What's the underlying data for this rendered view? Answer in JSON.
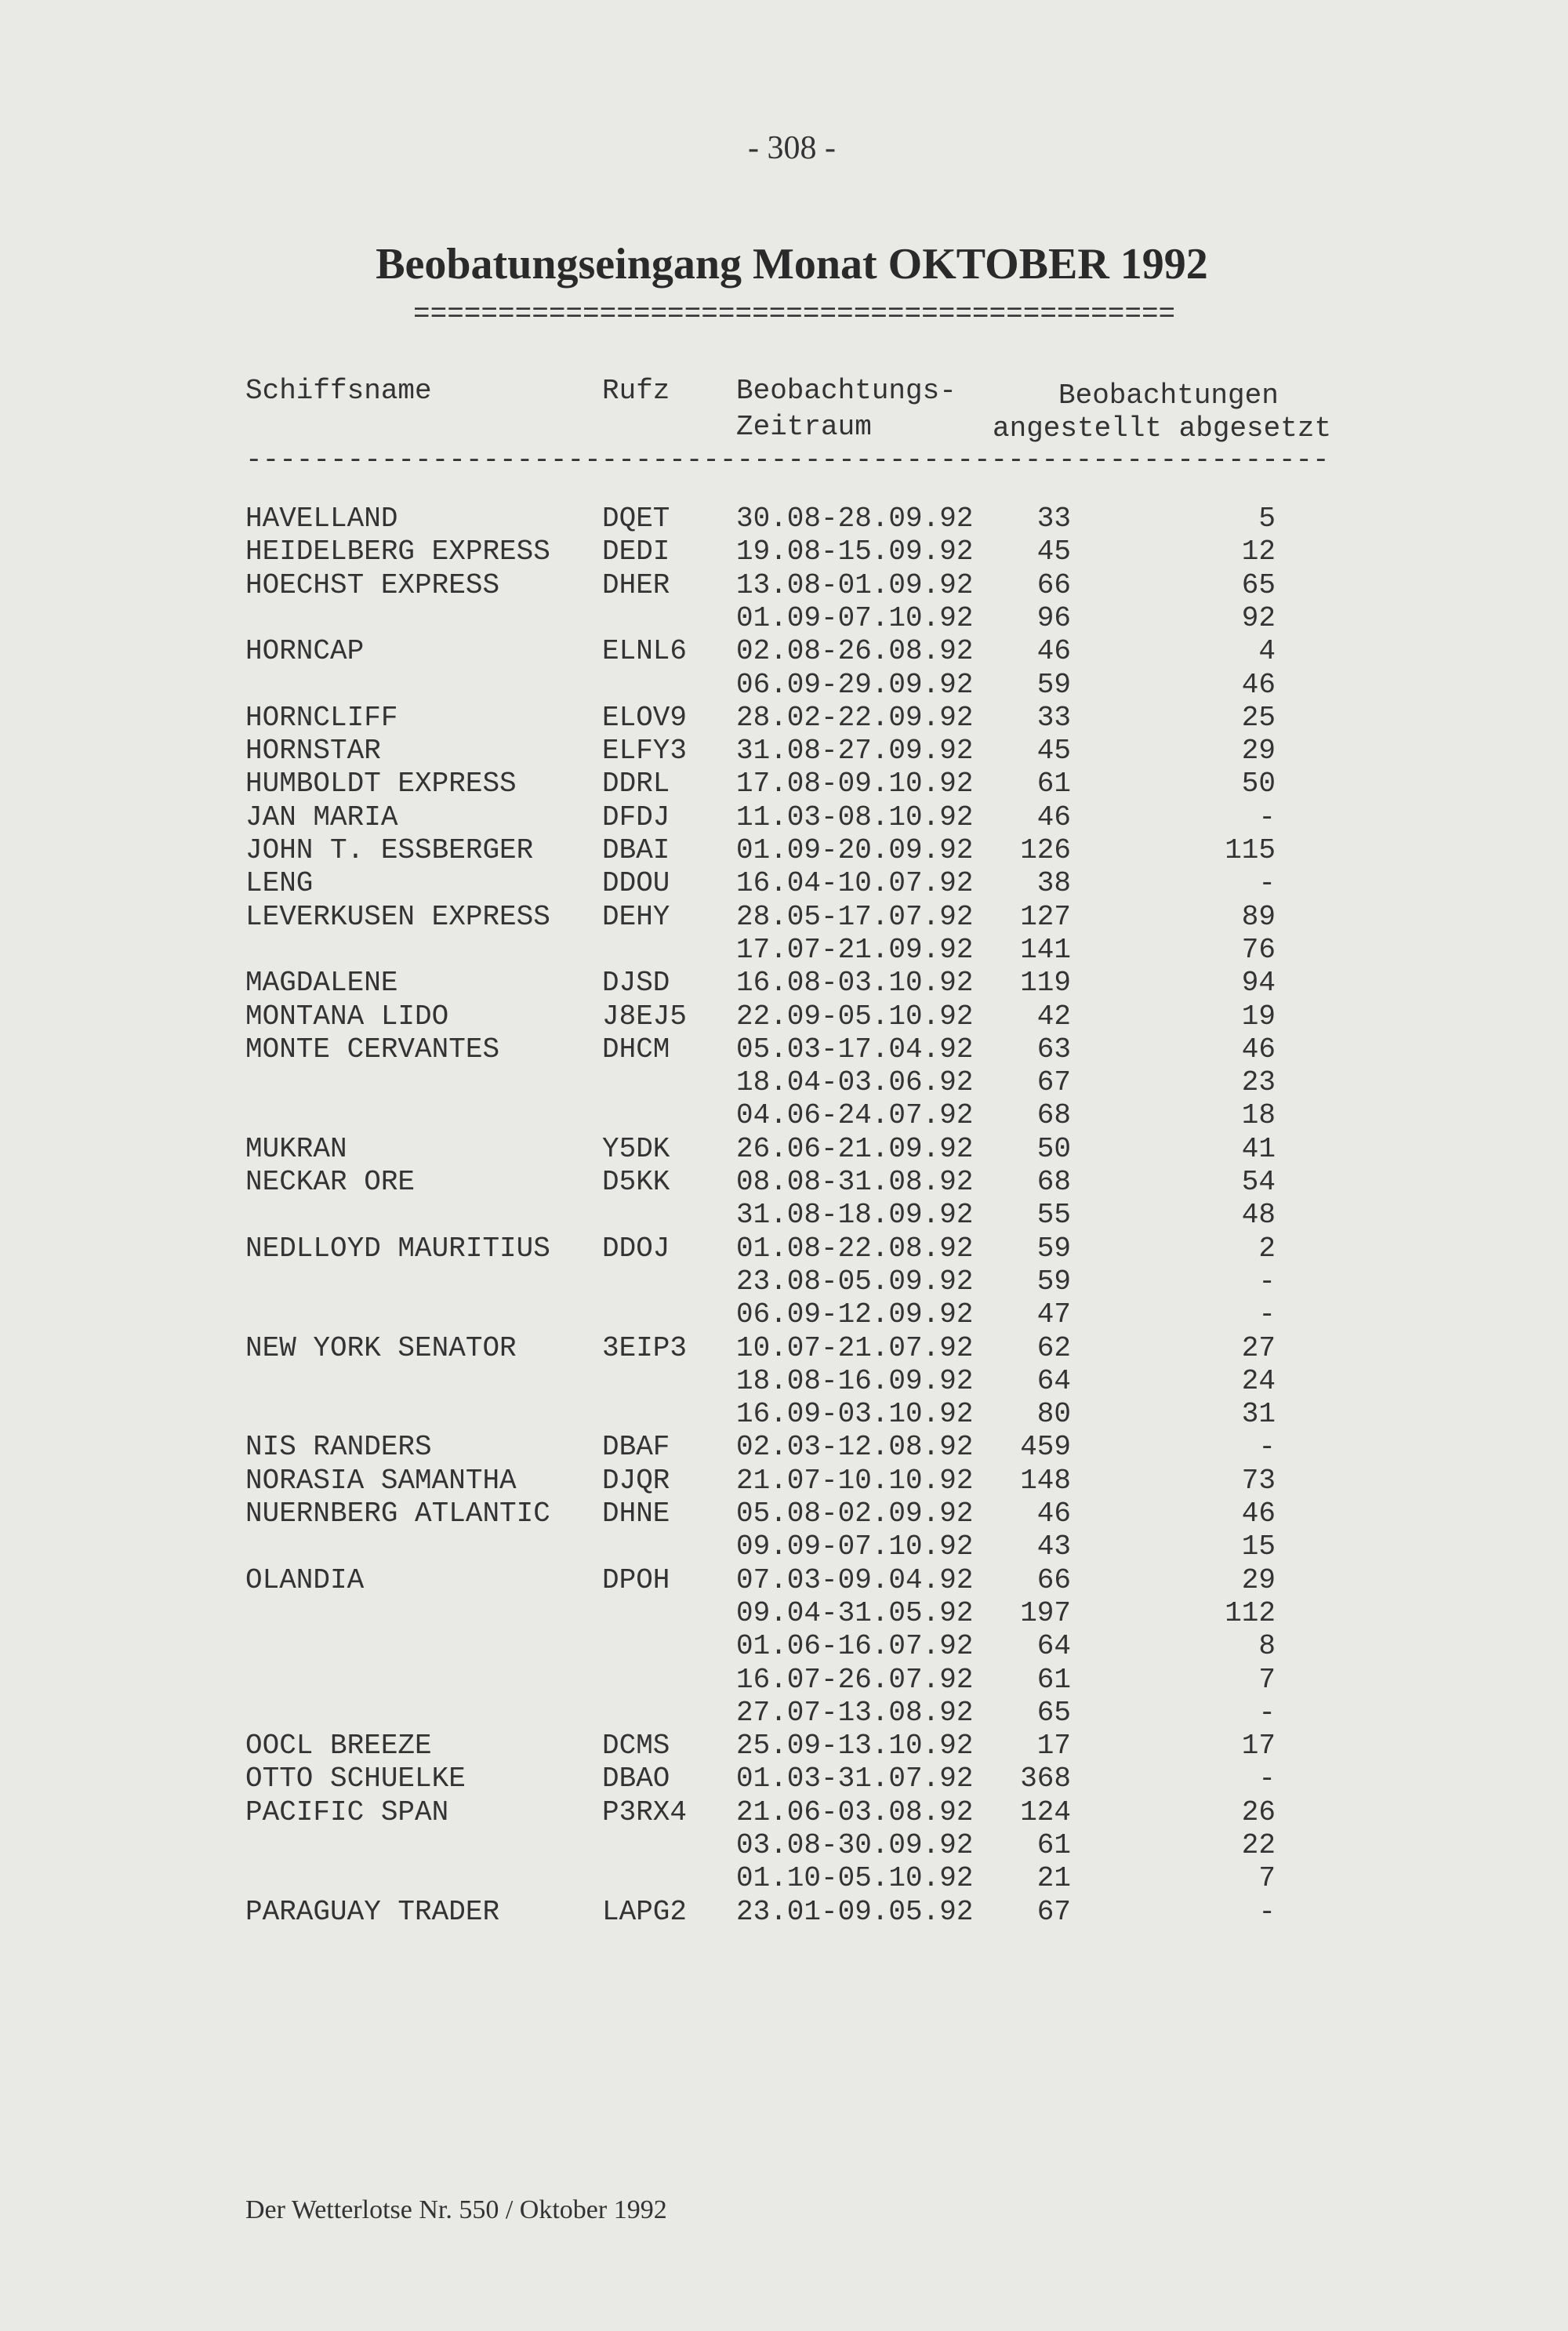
{
  "page_number": "- 308 -",
  "title": "Beobatungseingang Monat OKTOBER 1992",
  "title_rule": "=============================================",
  "header": {
    "col_name": "Schiffsname",
    "col_rufz": "Rufz",
    "col_period_line1": "Beobachtungs-",
    "col_period_line2": "Zeitraum",
    "col_obs_group": "Beobachtungen",
    "col_obs_sub": "angestellt abgesetzt",
    "rule": "----------------------------------------------------------------"
  },
  "rows": [
    [
      "HAVELLAND",
      "DQET",
      "30.08-28.09.92",
      "33",
      "5"
    ],
    [
      "HEIDELBERG EXPRESS",
      "DEDI",
      "19.08-15.09.92",
      "45",
      "12"
    ],
    [
      "HOECHST EXPRESS",
      "DHER",
      "13.08-01.09.92",
      "66",
      "65"
    ],
    [
      "",
      "",
      "01.09-07.10.92",
      "96",
      "92"
    ],
    [
      "HORNCAP",
      "ELNL6",
      "02.08-26.08.92",
      "46",
      "4"
    ],
    [
      "",
      "",
      "06.09-29.09.92",
      "59",
      "46"
    ],
    [
      "HORNCLIFF",
      "ELOV9",
      "28.02-22.09.92",
      "33",
      "25"
    ],
    [
      "HORNSTAR",
      "ELFY3",
      "31.08-27.09.92",
      "45",
      "29"
    ],
    [
      "HUMBOLDT EXPRESS",
      "DDRL",
      "17.08-09.10.92",
      "61",
      "50"
    ],
    [
      "JAN MARIA",
      "DFDJ",
      "11.03-08.10.92",
      "46",
      "-"
    ],
    [
      "JOHN T. ESSBERGER",
      "DBAI",
      "01.09-20.09.92",
      "126",
      "115"
    ],
    [
      "LENG",
      "DDOU",
      "16.04-10.07.92",
      "38",
      "-"
    ],
    [
      "LEVERKUSEN EXPRESS",
      "DEHY",
      "28.05-17.07.92",
      "127",
      "89"
    ],
    [
      "",
      "",
      "17.07-21.09.92",
      "141",
      "76"
    ],
    [
      "MAGDALENE",
      "DJSD",
      "16.08-03.10.92",
      "119",
      "94"
    ],
    [
      "MONTANA LIDO",
      "J8EJ5",
      "22.09-05.10.92",
      "42",
      "19"
    ],
    [
      "MONTE CERVANTES",
      "DHCM",
      "05.03-17.04.92",
      "63",
      "46"
    ],
    [
      "",
      "",
      "18.04-03.06.92",
      "67",
      "23"
    ],
    [
      "",
      "",
      "04.06-24.07.92",
      "68",
      "18"
    ],
    [
      "MUKRAN",
      "Y5DK",
      "26.06-21.09.92",
      "50",
      "41"
    ],
    [
      "NECKAR ORE",
      "D5KK",
      "08.08-31.08.92",
      "68",
      "54"
    ],
    [
      "",
      "",
      "31.08-18.09.92",
      "55",
      "48"
    ],
    [
      "NEDLLOYD MAURITIUS",
      "DDOJ",
      "01.08-22.08.92",
      "59",
      "2"
    ],
    [
      "",
      "",
      "23.08-05.09.92",
      "59",
      "-"
    ],
    [
      "",
      "",
      "06.09-12.09.92",
      "47",
      "-"
    ],
    [
      "NEW YORK SENATOR",
      "3EIP3",
      "10.07-21.07.92",
      "62",
      "27"
    ],
    [
      "",
      "",
      "18.08-16.09.92",
      "64",
      "24"
    ],
    [
      "",
      "",
      "16.09-03.10.92",
      "80",
      "31"
    ],
    [
      "NIS RANDERS",
      "DBAF",
      "02.03-12.08.92",
      "459",
      "-"
    ],
    [
      "NORASIA SAMANTHA",
      "DJQR",
      "21.07-10.10.92",
      "148",
      "73"
    ],
    [
      "NUERNBERG ATLANTIC",
      "DHNE",
      "05.08-02.09.92",
      "46",
      "46"
    ],
    [
      "",
      "",
      "09.09-07.10.92",
      "43",
      "15"
    ],
    [
      "OLANDIA",
      "DPOH",
      "07.03-09.04.92",
      "66",
      "29"
    ],
    [
      "",
      "",
      "09.04-31.05.92",
      "197",
      "112"
    ],
    [
      "",
      "",
      "01.06-16.07.92",
      "64",
      "8"
    ],
    [
      "",
      "",
      "16.07-26.07.92",
      "61",
      "7"
    ],
    [
      "",
      "",
      "27.07-13.08.92",
      "65",
      "-"
    ],
    [
      "OOCL BREEZE",
      "DCMS",
      "25.09-13.10.92",
      "17",
      "17"
    ],
    [
      "OTTO SCHUELKE",
      "DBAO",
      "01.03-31.07.92",
      "368",
      "-"
    ],
    [
      "PACIFIC SPAN",
      "P3RX4",
      "21.06-03.08.92",
      "124",
      "26"
    ],
    [
      "",
      "",
      "03.08-30.09.92",
      "61",
      "22"
    ],
    [
      "",
      "",
      "01.10-05.10.92",
      "21",
      "7"
    ],
    [
      "PARAGUAY TRADER",
      "LAPG2",
      "23.01-09.05.92",
      "67",
      "-"
    ]
  ],
  "footer": "Der Wetterlotse Nr. 550 / Oktober 1992"
}
